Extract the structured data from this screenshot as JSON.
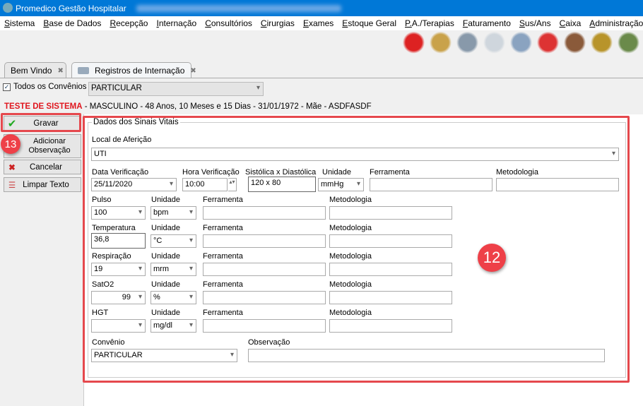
{
  "window": {
    "title": "Promedico Gestão Hospitalar"
  },
  "menu": [
    "Sistema",
    "Base de Dados",
    "Recepção",
    "Internação",
    "Consultórios",
    "Cirurgias",
    "Exames",
    "Estoque Geral",
    "P.A./Terapias",
    "Faturamento",
    "Sus/Ans",
    "Caixa",
    "Administração"
  ],
  "toolbar_icons": [
    {
      "name": "refresh-users-icon",
      "color": "#d22"
    },
    {
      "name": "patient-folder-icon",
      "color": "#c9a24a"
    },
    {
      "name": "doctor-icon",
      "color": "#8899aa"
    },
    {
      "name": "document-pen-icon",
      "color": "#cfd6dd"
    },
    {
      "name": "hospital-bed-icon",
      "color": "#8aa3c0"
    },
    {
      "name": "ambulance-icon",
      "color": "#d33"
    },
    {
      "name": "medicine-box-icon",
      "color": "#8a5a3a"
    },
    {
      "name": "money-up-icon",
      "color": "#b8942a"
    },
    {
      "name": "money-down-icon",
      "color": "#6a8a4a"
    }
  ],
  "tabs": [
    {
      "label": "Bem Vindo"
    },
    {
      "label": "Registros de Internação"
    }
  ],
  "filter": {
    "all_convenios_label": "Todos os Convênios",
    "all_convenios_checked": true,
    "convenio": "PARTICULAR"
  },
  "patient": {
    "name": "TESTE DE SISTEMA",
    "details": " - MASCULINO - 48 Anos, 10 Meses e 15 Dias - 31/01/1972 - Mãe - ASDFASDF"
  },
  "side_buttons": [
    "Gravar",
    "Adicionar Observação",
    "Cancelar",
    "Limpar Texto"
  ],
  "form": {
    "group_title": "Dados dos Sinais Vitais",
    "local_label": "Local de Aferição",
    "local": "UTI",
    "data_label": "Data Verificação",
    "data": "25/11/2020",
    "hora_label": "Hora Verificação",
    "hora": "10:00",
    "pa_label": "Sistólica x Diastólica",
    "pa": "120 x 80",
    "unidade_label": "Unidade",
    "pa_unidade": "mmHg",
    "ferramenta_label": "Ferramenta",
    "metodologia_label": "Metodologia",
    "rows": [
      {
        "label": "Pulso",
        "value": "100",
        "unit": "bpm",
        "value_dropdown": true
      },
      {
        "label": "Temperatura",
        "value": "36,8",
        "unit": "°C",
        "value_dropdown": false
      },
      {
        "label": "Respiração",
        "value": "19",
        "unit": "mrm",
        "value_dropdown": true
      },
      {
        "label": "SatO2",
        "value": "99",
        "unit": "%",
        "value_dropdown": true
      },
      {
        "label": "HGT",
        "value": "",
        "unit": "mg/dl",
        "value_dropdown": true
      }
    ],
    "convenio_label": "Convênio",
    "convenio": "PARTICULAR",
    "obs_label": "Observação",
    "obs": ""
  },
  "annotations": {
    "badge_12": "12",
    "badge_13": "13",
    "highlight_color": "#e5484d"
  }
}
